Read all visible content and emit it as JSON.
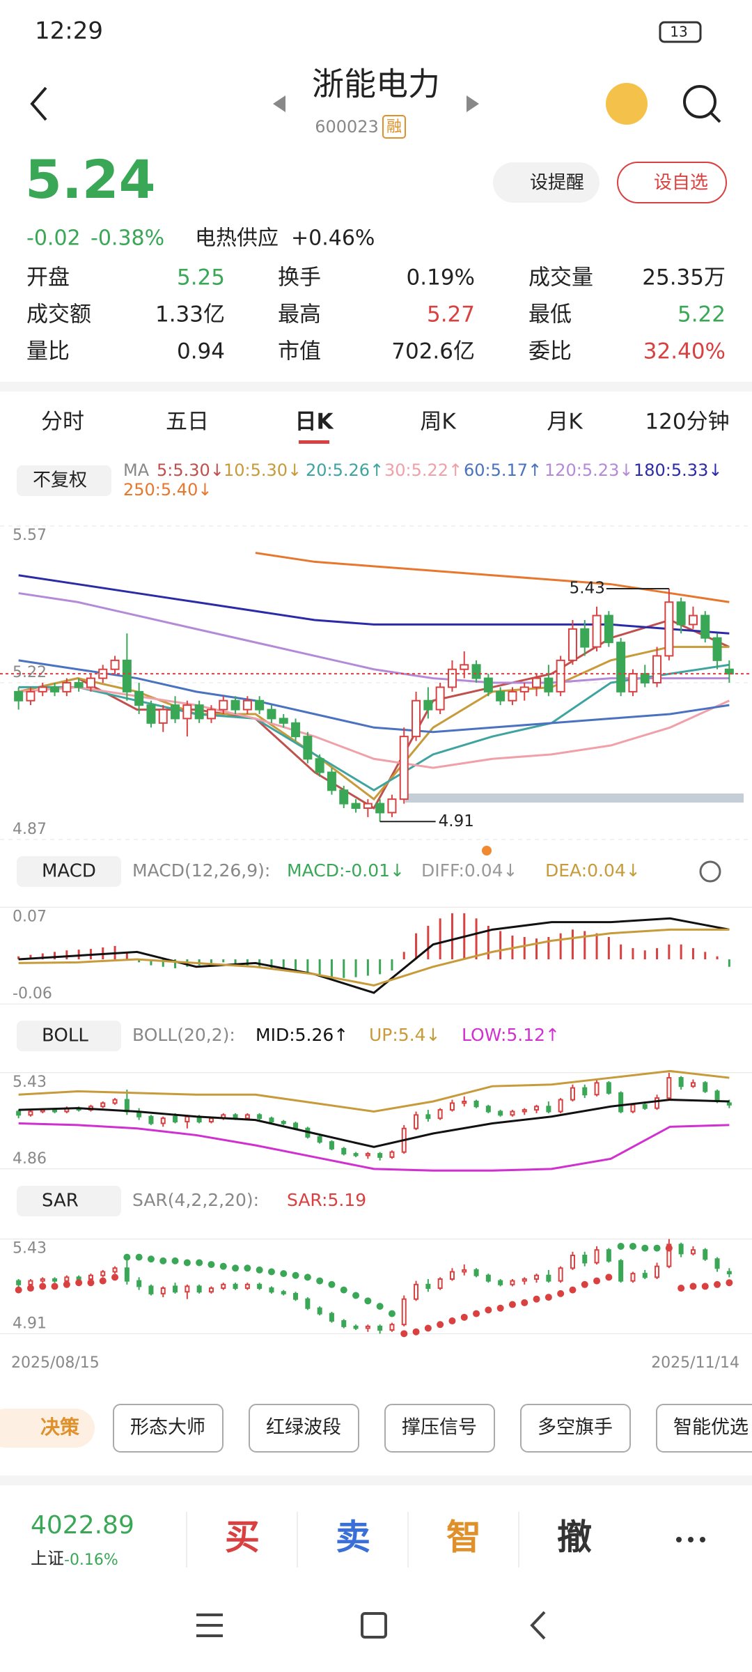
{
  "status": {
    "time": "12:29",
    "battery": "13"
  },
  "header": {
    "title": "浙能电力",
    "code": "600023",
    "badge": "融"
  },
  "quote": {
    "price": "5.24",
    "change": "-0.02",
    "change_pct": "-0.38%",
    "sector": "电热供应",
    "sector_change": "+0.46%",
    "buttons": [
      "设提醒",
      "设自选"
    ]
  },
  "stats": [
    {
      "label": "开盘",
      "value": "5.25",
      "color": "#3aa757"
    },
    {
      "label": "换手",
      "value": "0.19%",
      "color": "#222"
    },
    {
      "label": "成交量",
      "value": "25.35万",
      "color": "#222"
    },
    {
      "label": "成交额",
      "value": "1.33亿",
      "color": "#222"
    },
    {
      "label": "最高",
      "value": "5.27",
      "color": "#d94040"
    },
    {
      "label": "最低",
      "value": "5.22",
      "color": "#3aa757"
    },
    {
      "label": "量比",
      "value": "0.94",
      "color": "#222"
    },
    {
      "label": "市值",
      "value": "702.6亿",
      "color": "#222"
    },
    {
      "label": "委比",
      "value": "32.40%",
      "color": "#d94040"
    }
  ],
  "tabs": [
    "分时",
    "五日",
    "日K",
    "周K",
    "月K",
    "120分钟"
  ],
  "active_tab": 2,
  "ma_legend": {
    "adjust": "不复权",
    "label": "MA",
    "items": [
      {
        "text": "5:5.30↓",
        "color": "#c0504d",
        "values": [
          5.2,
          5.23,
          5.16,
          5.16,
          5.14,
          5.02,
          4.94,
          5.18,
          5.21,
          5.24,
          5.32,
          5.36,
          5.3
        ]
      },
      {
        "text": "10:5.30↓",
        "color": "#c79a3a",
        "values": [
          5.2,
          5.23,
          5.2,
          5.15,
          5.15,
          5.06,
          4.96,
          5.12,
          5.2,
          5.21,
          5.27,
          5.3,
          5.3
        ]
      },
      {
        "text": "20:5.26↑",
        "color": "#3fa3a0",
        "values": [
          5.21,
          5.21,
          5.18,
          5.15,
          5.14,
          5.06,
          4.98,
          5.06,
          5.1,
          5.13,
          5.22,
          5.24,
          5.26
        ]
      },
      {
        "text": "30:5.22↑",
        "color": "#f0a0a8",
        "values": [
          5.2,
          5.21,
          5.19,
          5.17,
          5.14,
          5.1,
          5.05,
          5.03,
          5.05,
          5.06,
          5.08,
          5.12,
          5.18
        ]
      },
      {
        "text": "60:5.17↑",
        "color": "#4a72c0",
        "values": [
          5.27,
          5.25,
          5.23,
          5.2,
          5.18,
          5.15,
          5.12,
          5.11,
          5.12,
          5.13,
          5.14,
          5.15,
          5.17
        ]
      },
      {
        "text": "120:5.23↓",
        "color": "#b48ad8",
        "values": [
          5.42,
          5.4,
          5.37,
          5.34,
          5.31,
          5.28,
          5.25,
          5.23,
          5.22,
          5.22,
          5.23,
          5.23,
          5.23
        ]
      },
      {
        "text": "180:5.33↓",
        "color": "#2b2ba8",
        "values": [
          5.46,
          5.44,
          5.42,
          5.4,
          5.38,
          5.36,
          5.35,
          5.35,
          5.35,
          5.35,
          5.35,
          5.34,
          5.33
        ]
      },
      {
        "text": "250:5.40↓",
        "color": "#e8772e",
        "values": [
          null,
          null,
          null,
          null,
          5.51,
          5.49,
          5.48,
          5.47,
          5.46,
          5.45,
          5.44,
          5.42,
          5.4
        ]
      }
    ]
  },
  "main": {
    "ylim": [
      4.87,
      5.57
    ],
    "yticks": [
      5.57,
      5.22,
      4.87
    ],
    "high": 5.43,
    "low": 4.91,
    "candles": [
      [
        5.2,
        5.21,
        5.16,
        5.18
      ],
      [
        5.18,
        5.21,
        5.17,
        5.2
      ],
      [
        5.2,
        5.22,
        5.19,
        5.21
      ],
      [
        5.21,
        5.22,
        5.19,
        5.2
      ],
      [
        5.2,
        5.23,
        5.19,
        5.22
      ],
      [
        5.22,
        5.23,
        5.2,
        5.21
      ],
      [
        5.21,
        5.24,
        5.2,
        5.23
      ],
      [
        5.23,
        5.26,
        5.22,
        5.25
      ],
      [
        5.25,
        5.28,
        5.24,
        5.27
      ],
      [
        5.27,
        5.33,
        5.18,
        5.2
      ],
      [
        5.2,
        5.22,
        5.15,
        5.17
      ],
      [
        5.17,
        5.18,
        5.12,
        5.13
      ],
      [
        5.13,
        5.17,
        5.11,
        5.16
      ],
      [
        5.17,
        5.19,
        5.13,
        5.14
      ],
      [
        5.14,
        5.18,
        5.1,
        5.17
      ],
      [
        5.17,
        5.18,
        5.13,
        5.14
      ],
      [
        5.14,
        5.17,
        5.13,
        5.16
      ],
      [
        5.16,
        5.19,
        5.15,
        5.18
      ],
      [
        5.18,
        5.19,
        5.15,
        5.16
      ],
      [
        5.16,
        5.19,
        5.15,
        5.18
      ],
      [
        5.18,
        5.19,
        5.15,
        5.16
      ],
      [
        5.16,
        5.17,
        5.13,
        5.14
      ],
      [
        5.14,
        5.15,
        5.12,
        5.13
      ],
      [
        5.13,
        5.14,
        5.09,
        5.1
      ],
      [
        5.1,
        5.11,
        5.04,
        5.05
      ],
      [
        5.05,
        5.06,
        5.01,
        5.02
      ],
      [
        5.02,
        5.03,
        4.97,
        4.98
      ],
      [
        4.98,
        4.99,
        4.94,
        4.95
      ],
      [
        4.95,
        4.96,
        4.93,
        4.94
      ],
      [
        4.94,
        4.96,
        4.92,
        4.95
      ],
      [
        4.95,
        4.96,
        4.91,
        4.93
      ],
      [
        4.93,
        4.97,
        4.92,
        4.96
      ],
      [
        4.96,
        5.12,
        4.95,
        5.1
      ],
      [
        5.1,
        5.2,
        5.09,
        5.18
      ],
      [
        5.18,
        5.21,
        5.14,
        5.16
      ],
      [
        5.16,
        5.22,
        5.15,
        5.21
      ],
      [
        5.21,
        5.27,
        5.2,
        5.25
      ],
      [
        5.25,
        5.29,
        5.23,
        5.26
      ],
      [
        5.26,
        5.27,
        5.22,
        5.23
      ],
      [
        5.23,
        5.24,
        5.19,
        5.2
      ],
      [
        5.2,
        5.21,
        5.17,
        5.18
      ],
      [
        5.18,
        5.21,
        5.17,
        5.2
      ],
      [
        5.2,
        5.22,
        5.18,
        5.21
      ],
      [
        5.21,
        5.24,
        5.19,
        5.23
      ],
      [
        5.23,
        5.26,
        5.19,
        5.2
      ],
      [
        5.2,
        5.28,
        5.19,
        5.27
      ],
      [
        5.27,
        5.36,
        5.26,
        5.34
      ],
      [
        5.34,
        5.36,
        5.28,
        5.3
      ],
      [
        5.3,
        5.39,
        5.29,
        5.37
      ],
      [
        5.37,
        5.38,
        5.3,
        5.31
      ],
      [
        5.31,
        5.32,
        5.19,
        5.2
      ],
      [
        5.2,
        5.25,
        5.19,
        5.24
      ],
      [
        5.24,
        5.26,
        5.21,
        5.22
      ],
      [
        5.22,
        5.3,
        5.21,
        5.28
      ],
      [
        5.28,
        5.43,
        5.27,
        5.4
      ],
      [
        5.4,
        5.41,
        5.33,
        5.35
      ],
      [
        5.35,
        5.39,
        5.34,
        5.37
      ],
      [
        5.37,
        5.38,
        5.31,
        5.32
      ],
      [
        5.32,
        5.33,
        5.25,
        5.27
      ],
      [
        5.25,
        5.27,
        5.22,
        5.24
      ]
    ]
  },
  "macd": {
    "name": "MACD",
    "params": "MACD(12,26,9):",
    "labels": [
      {
        "text": "MACD:-0.01↓",
        "color": "#3aa757"
      },
      {
        "text": "DIFF:0.04↓",
        "color": "#999"
      },
      {
        "text": "DEA:0.04↓",
        "color": "#c79a3a"
      }
    ],
    "ylim": [
      -0.073,
      0.089
    ],
    "yticks": [
      0.07,
      -0.06
    ],
    "hist": [
      0.004,
      0.006,
      0.008,
      0.01,
      0.012,
      0.013,
      0.014,
      0.016,
      0.018,
      0.01,
      -0.004,
      -0.008,
      -0.01,
      -0.012,
      -0.01,
      -0.008,
      -0.006,
      -0.004,
      -0.006,
      -0.008,
      -0.01,
      -0.012,
      -0.015,
      -0.018,
      -0.02,
      -0.022,
      -0.024,
      -0.025,
      -0.024,
      -0.022,
      -0.02,
      -0.015,
      0.01,
      0.035,
      0.045,
      0.055,
      0.062,
      0.062,
      0.055,
      0.045,
      0.038,
      0.032,
      0.03,
      0.028,
      0.03,
      0.035,
      0.04,
      0.038,
      0.035,
      0.03,
      0.02,
      0.015,
      0.012,
      0.015,
      0.02,
      0.02,
      0.015,
      0.01,
      0.004,
      -0.01
    ],
    "lines": [
      {
        "color": "#111",
        "values": [
          0.0,
          0.005,
          0.01,
          -0.01,
          -0.005,
          -0.02,
          -0.045,
          0.02,
          0.04,
          0.05,
          0.05,
          0.055,
          0.04
        ]
      },
      {
        "color": "#c79a3a",
        "values": [
          -0.005,
          -0.004,
          0.0,
          -0.005,
          -0.01,
          -0.02,
          -0.035,
          -0.01,
          0.01,
          0.025,
          0.035,
          0.04,
          0.04
        ]
      }
    ]
  },
  "boll": {
    "name": "BOLL",
    "params": "BOLL(20,2):",
    "labels": [
      {
        "text": "MID:5.26↑",
        "color": "#111"
      },
      {
        "text": "UP:5.4↓",
        "color": "#c79a3a"
      },
      {
        "text": "LOW:5.12↑",
        "color": "#d030d0"
      }
    ],
    "ylim": [
      4.81,
      5.52
    ],
    "yticks": [
      5.43,
      4.86
    ],
    "lines": [
      {
        "color": "#c79a3a",
        "values": [
          5.3,
          5.32,
          5.31,
          5.3,
          5.3,
          5.25,
          5.2,
          5.26,
          5.35,
          5.36,
          5.4,
          5.44,
          5.4
        ]
      },
      {
        "color": "#111",
        "values": [
          5.21,
          5.22,
          5.2,
          5.17,
          5.15,
          5.07,
          4.99,
          5.07,
          5.13,
          5.17,
          5.23,
          5.27,
          5.26
        ]
      },
      {
        "color": "#d030d0",
        "values": [
          5.13,
          5.12,
          5.1,
          5.06,
          5.0,
          4.93,
          4.86,
          4.85,
          4.85,
          4.86,
          4.92,
          5.11,
          5.12
        ]
      }
    ]
  },
  "sar": {
    "name": "SAR",
    "params": "SAR(4,2,2,20):",
    "labels": [
      {
        "text": "SAR:5.19",
        "color": "#d94040"
      }
    ],
    "ylim": [
      4.85,
      5.52
    ],
    "yticks": [
      5.43,
      4.91
    ],
    "values": [
      5.15,
      5.16,
      5.17,
      5.17,
      5.18,
      5.19,
      5.19,
      5.2,
      5.22,
      5.33,
      5.33,
      5.32,
      5.31,
      5.31,
      5.3,
      5.3,
      5.29,
      5.28,
      5.27,
      5.27,
      5.26,
      5.25,
      5.24,
      5.23,
      5.22,
      5.2,
      5.18,
      5.15,
      5.12,
      5.09,
      5.06,
      5.02,
      4.91,
      4.92,
      4.94,
      4.96,
      4.98,
      5.0,
      5.02,
      5.04,
      5.05,
      5.07,
      5.08,
      5.1,
      5.11,
      5.13,
      5.15,
      5.18,
      5.2,
      5.22,
      5.39,
      5.39,
      5.38,
      5.38,
      5.38,
      5.16,
      5.17,
      5.17,
      5.18,
      5.19
    ]
  },
  "dates": [
    "2025/08/15",
    "2025/11/14"
  ],
  "tools": {
    "label": "决策",
    "items": [
      "形态大师",
      "红绿波段",
      "撑压信号",
      "多空旗手",
      "智能优选"
    ]
  },
  "bottom": {
    "index_value": "4022.89",
    "index_name": "上证",
    "index_change": "-0.16%",
    "actions": [
      {
        "text": "买",
        "color": "#d94040"
      },
      {
        "text": "卖",
        "color": "#3a6fd8"
      },
      {
        "text": "智",
        "color": "#e0902a"
      },
      {
        "text": "撤",
        "color": "#333"
      }
    ]
  }
}
